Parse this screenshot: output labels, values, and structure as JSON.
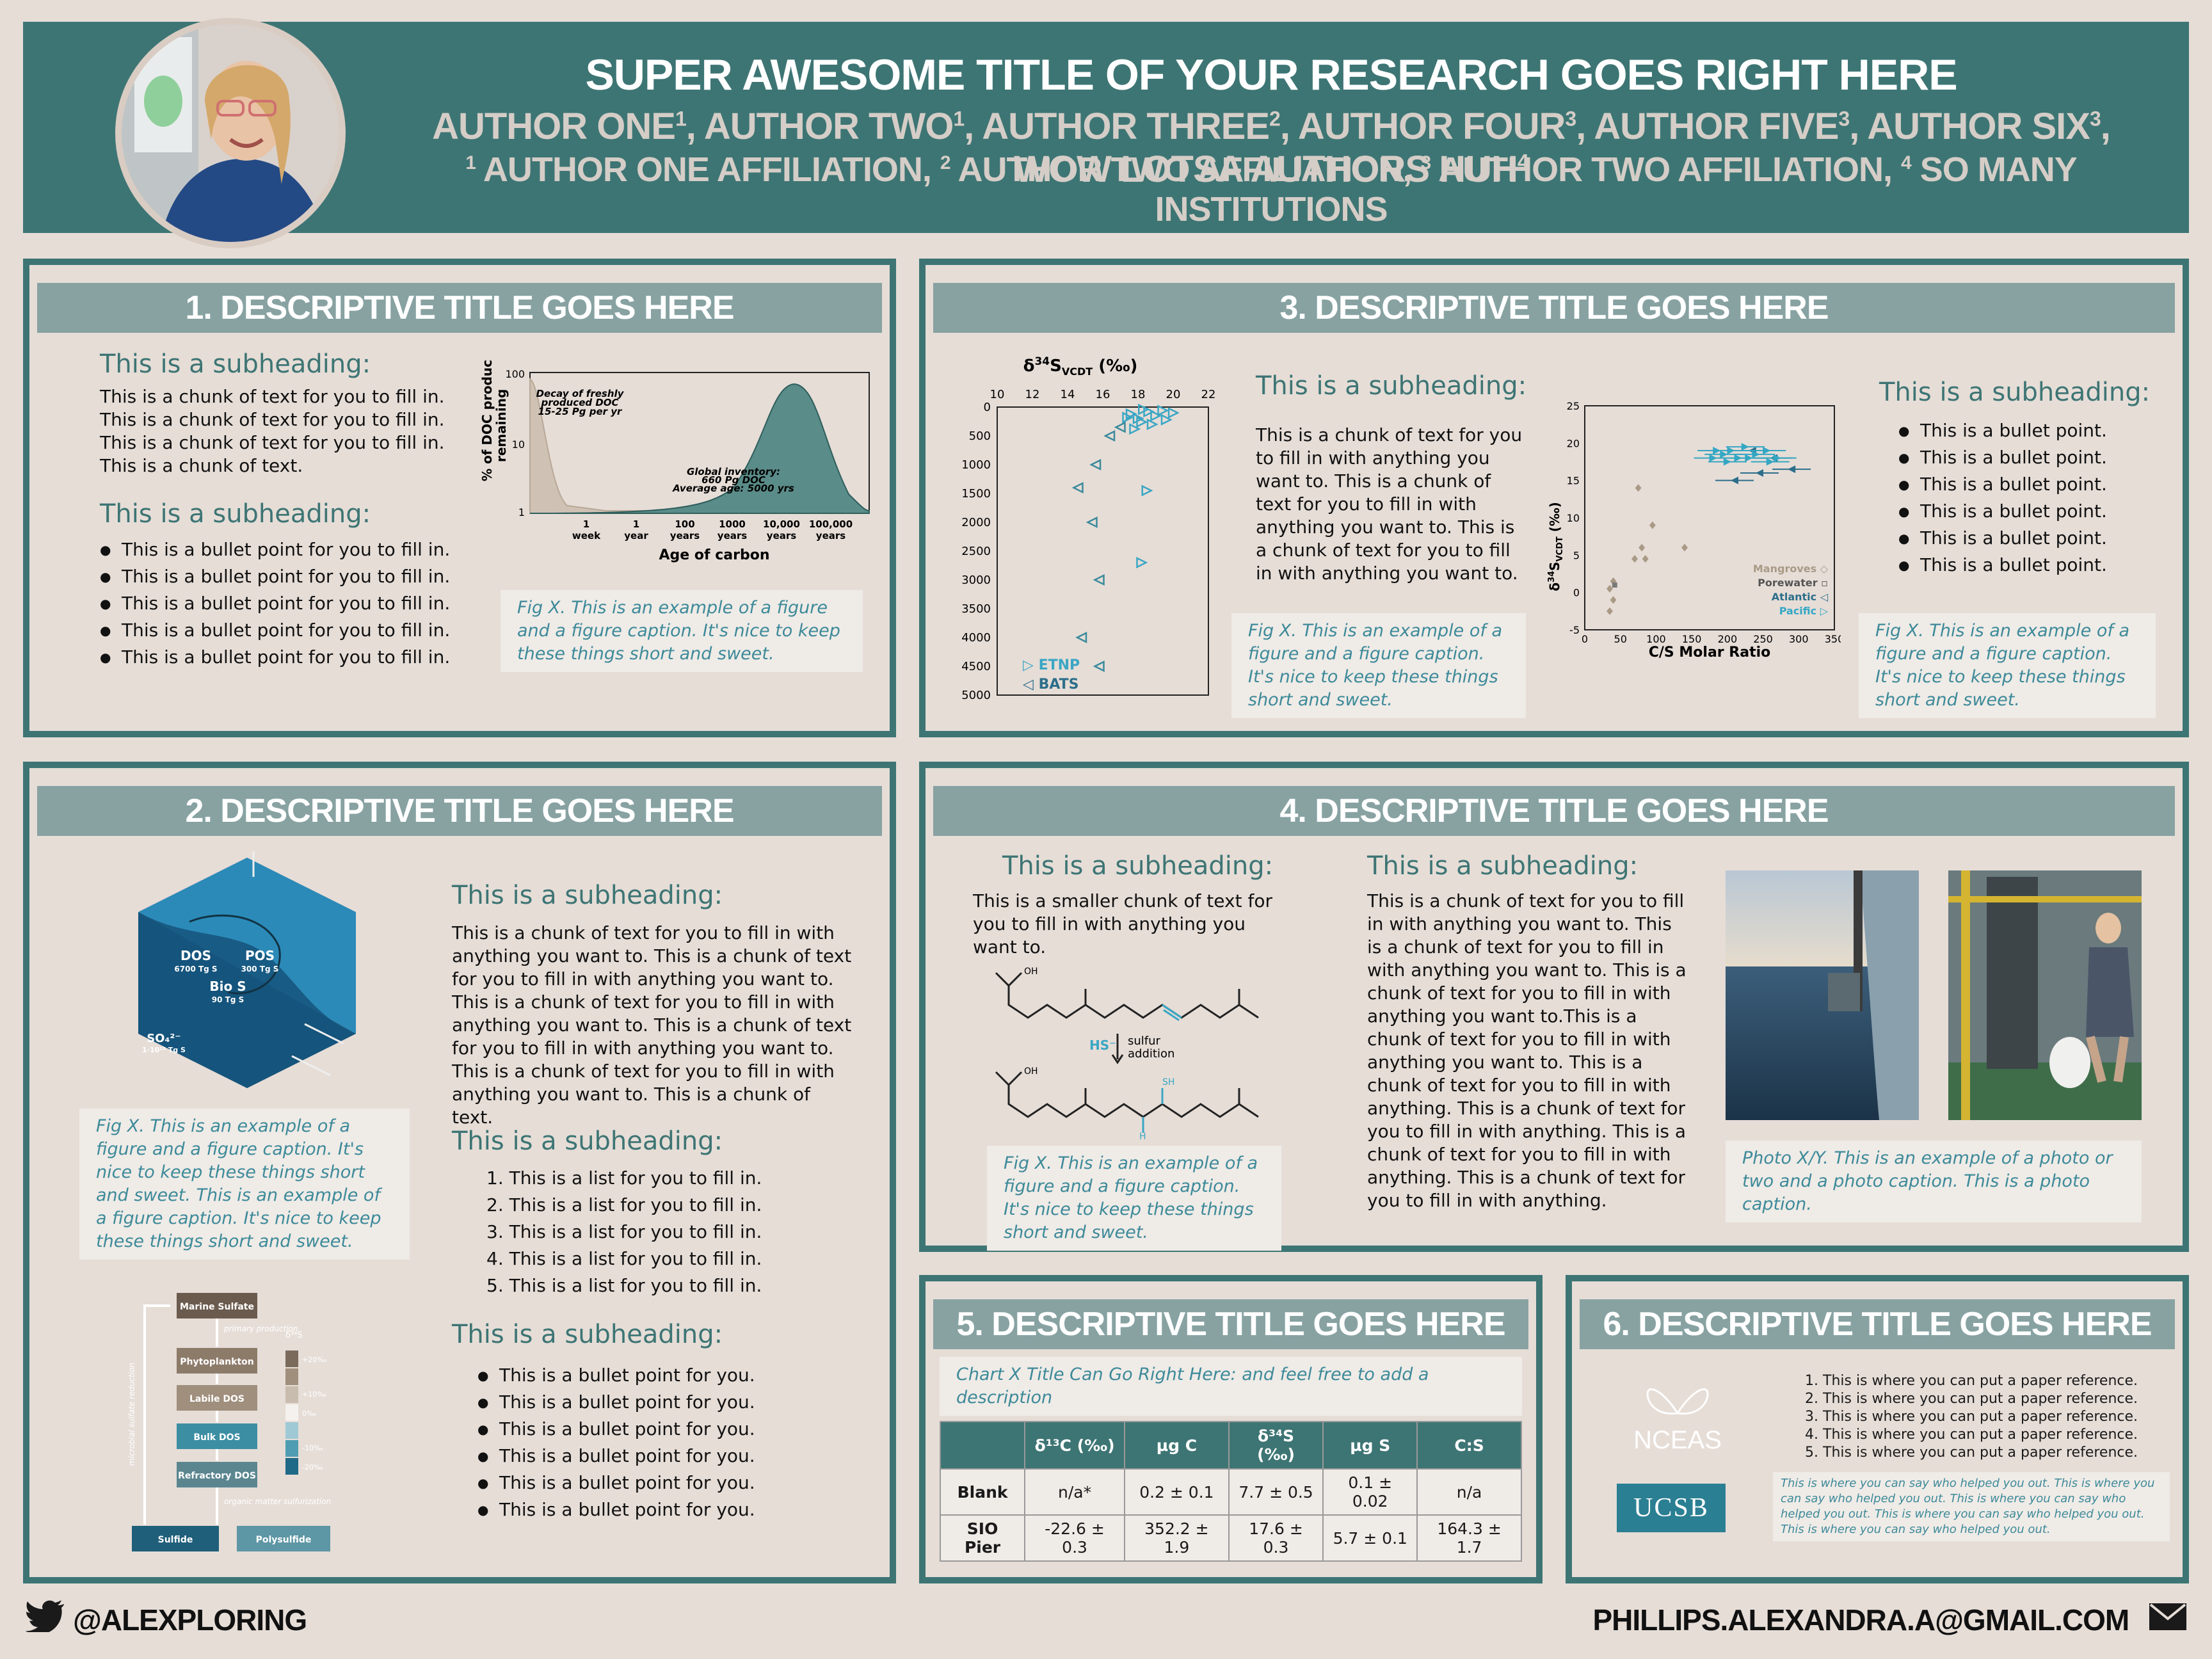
{
  "header": {
    "title": "SUPER AWESOME TITLE OF YOUR RESEARCH GOES RIGHT HERE",
    "authors": [
      {
        "name": "AUTHOR ONE",
        "sup": "1"
      },
      {
        "name": "AUTHOR TWO",
        "sup": "1"
      },
      {
        "name": "AUTHOR THREE",
        "sup": "2"
      },
      {
        "name": "AUTHOR FOUR",
        "sup": "3"
      },
      {
        "name": "AUTHOR FIVE",
        "sup": "3"
      },
      {
        "name": "AUTHOR SIX",
        "sup": "3"
      },
      {
        "name": "WOW LOTSA AUTHORS HUH",
        "sup": "4"
      }
    ],
    "affiliations": [
      {
        "sup": "1",
        "name": "AUTHOR ONE AFFILIATION,"
      },
      {
        "sup": "2",
        "name": "AUTHOR TWO AFFILIATION,"
      },
      {
        "sup": "3",
        "name": "AUTHOR TWO AFFILIATION,"
      },
      {
        "sup": "4",
        "name": "SO MANY INSTITUTIONS"
      }
    ]
  },
  "panel1": {
    "title": "1. DESCRIPTIVE TITLE GOES HERE",
    "sub1": "This is a subheading:",
    "text1": [
      "This is a chunk of text for you to fill in.",
      "This is a chunk of text for you to fill in.",
      "This is a chunk of text for you to fill in.",
      "This is a chunk of text."
    ],
    "sub2": "This is a subheading:",
    "bullets": [
      "This is a bullet point for you to fill in.",
      "This is a bullet point for you to fill in.",
      "This is a bullet point for you to fill in.",
      "This is a bullet point for you to fill in.",
      "This is a bullet point for you to fill in."
    ],
    "caption": "Fig X. This is an example of a figure and a figure caption.  It's nice to keep these things short and sweet.",
    "chart": {
      "ylabel_line1": "% of DOC production",
      "ylabel_line2": "remaining",
      "xlabel": "Age of carbon",
      "yticks": [
        "100",
        "10",
        "1"
      ],
      "xticks": [
        [
          "1",
          "week"
        ],
        [
          "1",
          "year"
        ],
        [
          "100",
          "years"
        ],
        [
          "1000",
          "years"
        ],
        [
          "10,000",
          "years"
        ],
        [
          "100,000",
          "years"
        ]
      ],
      "annot1": [
        "Decay of freshly",
        "produced DOC",
        "15-25 Pg per yr"
      ],
      "annot2": [
        "Global inventory:",
        "660 Pg DOC",
        "Average age: 5000 yrs"
      ]
    }
  },
  "panel2": {
    "title": "2. DESCRIPTIVE TITLE GOES HERE",
    "sub1": "This is a subheading:",
    "text1": "This is a chunk of text for you to fill in with anything you want to. This is a chunk of text for you to fill in with anything you want to. This is a chunk of text for you to fill in with anything you want to. This is a chunk of text for you to fill in with anything you want to. This is a chunk of text for you to fill in with anything you want to. This is a chunk of text.",
    "sub2": "This is a subheading:",
    "list": [
      "This is a list for you to fill in.",
      "This is a list for you to fill in.",
      "This is a list for you to fill in.",
      "This is a list for you to fill in.",
      "This is a list for you to fill in."
    ],
    "sub3": "This is a subheading:",
    "bullets": [
      "This is a bullet point for you.",
      "This is a bullet point for you.",
      "This is a bullet point for you.",
      "This is a bullet point for you.",
      "This is a bullet point for you.",
      "This is a bullet point for you."
    ],
    "caption": "Fig X. This is an example of a figure and a figure caption.  It's nice to keep these things short and sweet. This is an example of a figure caption.  It's nice to keep these things short and sweet.",
    "hex": {
      "dos": "DOS",
      "dos_val": "6700 Tg S",
      "pos": "POS",
      "pos_val": "300 Tg S",
      "bios": "Bio S",
      "bios_val": "90 Tg S",
      "so4": "SO₄²⁻",
      "so4_val": "1·10¹⁵ Tg S"
    },
    "flow": {
      "boxes": [
        "Marine Sulfate",
        "Phytoplankton",
        "Labile DOS",
        "Bulk DOS",
        "Refractory DOS",
        "Sulfide",
        "Polysulfide"
      ],
      "labels": [
        "primary production",
        "organic matter sulfurization",
        "microbial sulfate reduction"
      ],
      "scale_label": "δ³⁴S",
      "scale_ticks": [
        "+20‰",
        "+10‰",
        "0‰",
        "-10‰",
        "-20‰"
      ]
    }
  },
  "panel3": {
    "title": "3. DESCRIPTIVE TITLE GOES HERE",
    "sub1": "This is a subheading:",
    "text1": "This is a chunk of text for you to fill in with anything you want to. This is a chunk of text for you to fill in with anything you want to. This is a chunk of text for you to fill in with anything you want to.",
    "caption1": "Fig X. This is an example of a figure and a figure caption.  It's nice to keep these things short and sweet.",
    "sub2": "This is a subheading:",
    "bullets": [
      "This is a bullet point.",
      "This is a bullet point.",
      "This is a bullet point.",
      "This is a bullet point.",
      "This is a bullet point.",
      "This is a bullet point."
    ],
    "caption2": "Fig X. This is an example of a figure and a figure caption.  It's nice to keep these things short and sweet."
  },
  "panel4": {
    "title": "4. DESCRIPTIVE TITLE GOES HERE",
    "sub1": "This is a subheading:",
    "text1": "This is a smaller chunk of text for you to fill in with anything you want to.",
    "rxn": {
      "reagent": "HS⁻",
      "label1": "sulfur",
      "label2": "addition",
      "oh": "OH",
      "sh": "SH",
      "h": "H"
    },
    "caption1": "Fig X. This is an example of a figure and a figure caption.  It's nice to keep these things short and sweet.",
    "sub2": "This is a subheading:",
    "text2": "This is a chunk of text for you to fill in with anything you want to. This is a chunk of text for you to fill in with anything you want to. This is a chunk of text for you to fill in with anything you want to.This is a chunk of text for you to fill in with anything you want to. This is a chunk of text for you to fill in with anything. This is a chunk of text for you to fill in with anything. This is a chunk of text for you to fill in with anything. This is a chunk of text for you to fill in with anything.",
    "caption2": "Photo X/Y. This is an example of a photo or two and a photo caption. This is a photo caption."
  },
  "panel5": {
    "title": "5. DESCRIPTIVE TITLE GOES HERE",
    "chart_title": "Chart X Title Can Go Right Here: and feel free to add a description",
    "table": {
      "headers": [
        "",
        "δ¹³C (‰)",
        "µg C",
        "δ³⁴S (‰)",
        "µg S",
        "C:S"
      ],
      "rows": [
        [
          "Blank",
          "n/a*",
          "0.2 ± 0.1",
          "7.7 ± 0.5",
          "0.1 ± 0.02",
          "n/a"
        ],
        [
          "SIO Pier",
          "-22.6 ± 0.3",
          "352.2 ± 1.9",
          "17.6 ± 0.3",
          "5.7 ± 0.1",
          "164.3 ± 1.7"
        ]
      ]
    }
  },
  "panel6": {
    "title": "6. DESCRIPTIVE TITLE GOES HERE",
    "logo1": "NCEAS",
    "logo2": "UCSB",
    "refs": [
      "This is where you can put a paper reference.",
      "This is where you can put a paper reference.",
      "This is where you can put a paper reference.",
      "This is where you can put a paper reference.",
      "This is where you can put a paper reference."
    ],
    "ack": "This is where you can say who helped you out. This is where you can say who helped you out. This is where you can say who helped you out. This is where you can say who helped you out. This is where you can say who helped you out."
  },
  "footer": {
    "handle": "@ALEXPLORING",
    "email": "PHILLIPS.ALEXANDRA.A@GMAIL.COM"
  },
  "chart_data": [
    {
      "type": "scatter",
      "title": "δ³⁴S_VCDT (‰)",
      "xlabel": "",
      "ylabel": "",
      "xlim": [
        10,
        22
      ],
      "ylim": [
        5000,
        0
      ],
      "xticks": [
        10,
        12,
        14,
        16,
        18,
        20,
        22
      ],
      "yticks": [
        500,
        1000,
        1500,
        2000,
        2500,
        3000,
        3500,
        4000,
        4500,
        5000
      ],
      "legend_position": "bottom-left",
      "series": [
        {
          "name": "ETNP",
          "color": "#3aa6c4",
          "marker": "triangle-right",
          "points": [
            [
              17.6,
              120
            ],
            [
              18.0,
              200
            ],
            [
              18.6,
              80
            ],
            [
              19.0,
              150
            ],
            [
              19.4,
              60
            ],
            [
              18.2,
              260
            ],
            [
              17.8,
              380
            ],
            [
              18.8,
              300
            ],
            [
              19.6,
              220
            ],
            [
              18.3,
              40
            ],
            [
              17.4,
              180
            ],
            [
              20.0,
              100
            ],
            [
              18.5,
              1450
            ],
            [
              18.2,
              2700
            ]
          ]
        },
        {
          "name": "BATS",
          "color": "#3b8a9c",
          "marker": "triangle-left",
          "points": [
            [
              16.4,
              500
            ],
            [
              17.0,
              350
            ],
            [
              15.6,
              1000
            ],
            [
              14.6,
              1400
            ],
            [
              15.4,
              2000
            ],
            [
              15.8,
              3000
            ],
            [
              14.8,
              4000
            ],
            [
              15.8,
              4500
            ]
          ]
        }
      ]
    },
    {
      "type": "scatter",
      "title": "",
      "xlabel": "C/S Molar Ratio",
      "ylabel": "δ³⁴S_VCDT (‰)",
      "xlim": [
        0,
        350
      ],
      "ylim": [
        -5,
        25
      ],
      "xticks": [
        0,
        50,
        100,
        150,
        200,
        250,
        300,
        350
      ],
      "yticks": [
        -5,
        0,
        5,
        10,
        15,
        20,
        25
      ],
      "legend_position": "bottom-right",
      "series": [
        {
          "name": "Mangroves",
          "color": "#a99a86",
          "points": [
            [
              75,
              14
            ],
            [
              95,
              9
            ],
            [
              80,
              6
            ],
            [
              85,
              4.5
            ],
            [
              70,
              4.5
            ],
            [
              140,
              6
            ],
            [
              35,
              0.5
            ],
            [
              40,
              1.5
            ],
            [
              40,
              -1
            ],
            [
              35,
              -2.5
            ]
          ]
        },
        {
          "name": "Porewater",
          "color": "#7a7a7a",
          "points": [
            [
              42,
              1
            ]
          ]
        },
        {
          "name": "Atlantic",
          "color": "#2c6e8a",
          "points": [
            [
              210,
              15
            ],
            [
              245,
              16
            ],
            [
              290,
              16.5
            ],
            [
              265,
              18
            ],
            [
              235,
              19
            ]
          ]
        },
        {
          "name": "Pacific",
          "color": "#34a7c4",
          "points": [
            [
              180,
              18
            ],
            [
              195,
              18.5
            ],
            [
              205,
              19
            ],
            [
              215,
              18
            ],
            [
              225,
              19.5
            ],
            [
              240,
              18.5
            ],
            [
              255,
              19
            ],
            [
              270,
              18
            ],
            [
              200,
              17.5
            ],
            [
              230,
              18
            ],
            [
              260,
              17.5
            ],
            [
              185,
              19
            ]
          ]
        }
      ]
    }
  ]
}
